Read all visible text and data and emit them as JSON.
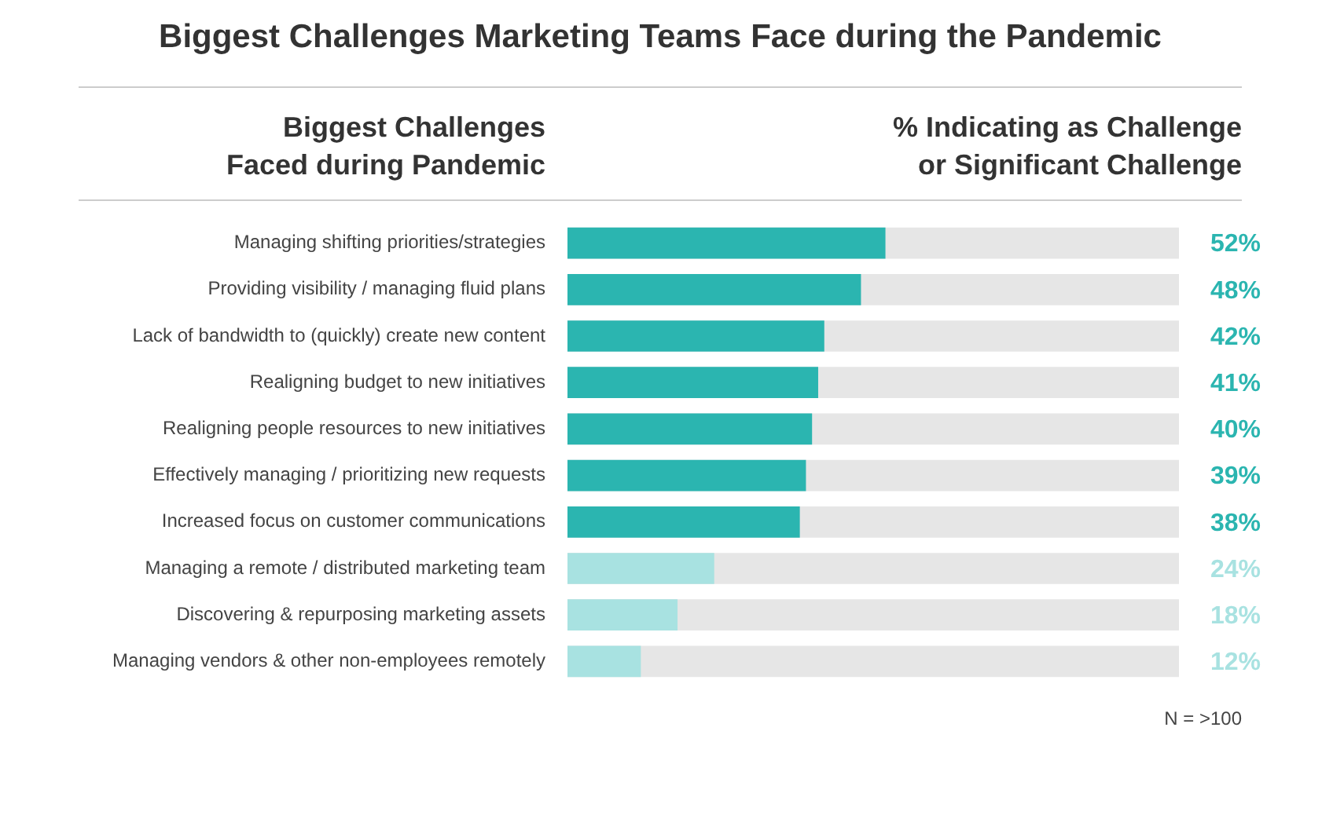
{
  "chart_data": {
    "type": "bar",
    "orientation": "horizontal",
    "title": "Biggest Challenges Marketing Teams Face during the Pandemic",
    "ylabel": "Biggest Challenges\nFaced during Pandemic",
    "xlabel": "% Indicating as Challenge\nor Significant Challenge",
    "categories": [
      "Managing shifting priorities/strategies",
      "Providing visibility / managing fluid plans",
      "Lack of bandwidth to (quickly) create new content",
      "Realigning budget to new initiatives",
      "Realigning people resources to new initiatives",
      "Effectively managing / prioritizing new requests",
      "Increased focus on customer communications",
      "Managing a remote / distributed marketing team",
      "Discovering & repurposing marketing assets",
      "Managing vendors & other non-employees remotely"
    ],
    "values": [
      52,
      48,
      42,
      41,
      40,
      39,
      38,
      24,
      18,
      12
    ],
    "colors": [
      "#2bb5b0",
      "#2bb5b0",
      "#2bb5b0",
      "#2bb5b0",
      "#2bb5b0",
      "#2bb5b0",
      "#2bb5b0",
      "#a8e2e1",
      "#a8e2e1",
      "#a8e2e1"
    ],
    "value_labels": [
      "52%",
      "48%",
      "42%",
      "41%",
      "40%",
      "39%",
      "38%",
      "24%",
      "18%",
      "12%"
    ],
    "xlim": [
      0,
      100
    ],
    "grid": false,
    "legend": false,
    "tick_labels": "y",
    "annotations": [
      "N = >100"
    ]
  }
}
